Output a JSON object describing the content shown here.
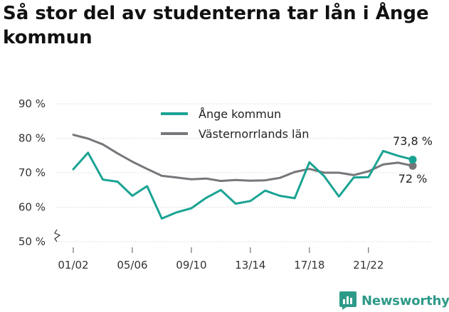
{
  "title": "Så stor del av studenterna tar lån i Ånge kommun",
  "brand": {
    "name": "Newsworthy",
    "icon": "bar-chart-speech-icon",
    "color": "#2d9a89"
  },
  "chart_data": {
    "type": "line",
    "title": "Så stor del av studenterna tar lån i Ånge kommun",
    "xlabel": "",
    "ylabel": "",
    "ylim": [
      50,
      90
    ],
    "y_ticks": [
      50,
      60,
      70,
      80,
      90
    ],
    "y_tick_labels": [
      "50 %",
      "60 %",
      "70 %",
      "80 %",
      "90 %"
    ],
    "y_axis_broken": true,
    "grid": true,
    "legend_position": "top-center",
    "x_tick_labels": [
      "01/02",
      "05/06",
      "09/10",
      "13/14",
      "17/18",
      "21/22"
    ],
    "x_tick_indices": [
      0,
      4,
      8,
      12,
      16,
      20
    ],
    "x": [
      "01/02",
      "02/03",
      "03/04",
      "04/05",
      "05/06",
      "06/07",
      "07/08",
      "08/09",
      "09/10",
      "10/11",
      "11/12",
      "12/13",
      "13/14",
      "14/15",
      "15/16",
      "16/17",
      "17/18",
      "18/19",
      "19/20",
      "20/21",
      "21/22",
      "22/23",
      "23/24",
      "24/25"
    ],
    "series": [
      {
        "name": "Ånge kommun",
        "color": "#1aa393",
        "values": [
          71.0,
          75.8,
          68.0,
          67.4,
          63.3,
          66.1,
          56.7,
          58.5,
          59.7,
          62.7,
          65.0,
          61.0,
          61.8,
          64.8,
          63.3,
          62.6,
          73.0,
          69.0,
          63.1,
          68.6,
          68.7,
          76.3,
          74.9,
          73.8
        ],
        "end_label": "73,8 %"
      },
      {
        "name": "Västernorrlands län",
        "color": "#77767b",
        "values": [
          81.0,
          79.9,
          78.2,
          75.6,
          73.2,
          71.1,
          69.1,
          68.6,
          68.1,
          68.3,
          67.6,
          67.9,
          67.7,
          67.8,
          68.5,
          70.2,
          71.1,
          70.0,
          70.0,
          69.3,
          70.4,
          72.4,
          72.9,
          72.0
        ],
        "end_label": "72 %"
      }
    ]
  }
}
